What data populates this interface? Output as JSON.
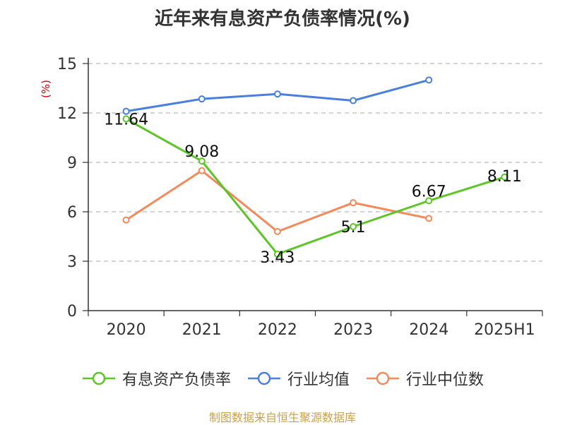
{
  "title": "近年来有息资产负债率情况(%)",
  "footer": "制图数据来自恒生聚源数据库",
  "colors": {
    "series0": "#5dc528",
    "series1": "#4a7fdc",
    "series2": "#f38a5b",
    "grid": "#bbbbbb",
    "axis": "#333333"
  },
  "chart_data": {
    "type": "line",
    "categories": [
      "2020",
      "2021",
      "2022",
      "2023",
      "2024",
      "2025H1"
    ],
    "ylabel": "(%)",
    "ylim": [
      0,
      15
    ],
    "yticks": [
      0,
      3,
      6,
      9,
      12,
      15
    ],
    "grid": true,
    "legend": "bottom",
    "series": [
      {
        "name": "有息资产负债率",
        "values": [
          11.64,
          9.08,
          3.43,
          5.1,
          6.67,
          8.11
        ],
        "labels": [
          "11.64",
          "9.08",
          "3.43",
          "5.1",
          "6.67",
          "8.11"
        ]
      },
      {
        "name": "行业均值",
        "values": [
          12.1,
          12.85,
          13.15,
          12.75,
          14.0,
          null
        ]
      },
      {
        "name": "行业中位数",
        "values": [
          5.5,
          8.5,
          4.8,
          6.55,
          5.6,
          null
        ]
      }
    ]
  }
}
